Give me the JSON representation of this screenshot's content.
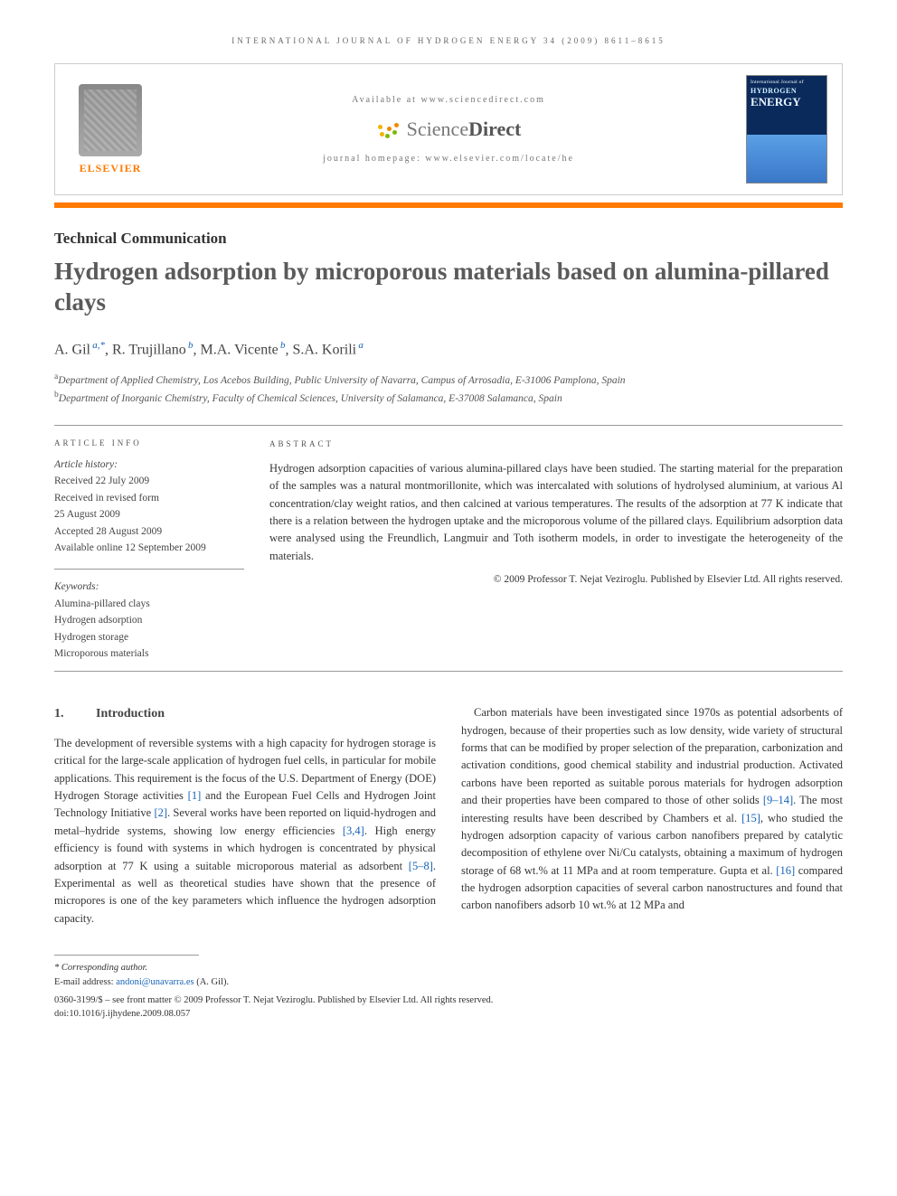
{
  "running_header": "INTERNATIONAL JOURNAL OF HYDROGEN ENERGY 34 (2009) 8611–8615",
  "banner": {
    "available_at": "Available at www.sciencedirect.com",
    "sd_brand_light": "Science",
    "sd_brand_bold": "Direct",
    "homepage_label": "journal homepage: www.elsevier.com/locate/he",
    "elsevier_label": "ELSEVIER",
    "cover": {
      "line1": "International Journal of",
      "line2": "HYDROGEN",
      "line3": "ENERGY"
    }
  },
  "colors": {
    "accent_orange": "#ff7a00",
    "link_blue": "#1763b8",
    "cover_dark": "#0a2a5c",
    "cover_light": "#5aa0e6",
    "sd_dot1": "#f5b100",
    "sd_dot2": "#f08a00",
    "sd_dot3": "#7fb800"
  },
  "article_type": "Technical Communication",
  "title": "Hydrogen adsorption by microporous materials based on alumina-pillared clays",
  "authors_html": "A. Gil",
  "authors": [
    {
      "name": "A. Gil",
      "marks": "a,*"
    },
    {
      "name": "R. Trujillano",
      "marks": "b"
    },
    {
      "name": "M.A. Vicente",
      "marks": "b"
    },
    {
      "name": "S.A. Korili",
      "marks": "a"
    }
  ],
  "affiliations": [
    {
      "mark": "a",
      "text": "Department of Applied Chemistry, Los Acebos Building, Public University of Navarra, Campus of Arrosadia, E-31006 Pamplona, Spain"
    },
    {
      "mark": "b",
      "text": "Department of Inorganic Chemistry, Faculty of Chemical Sciences, University of Salamanca, E-37008 Salamanca, Spain"
    }
  ],
  "info": {
    "label": "ARTICLE INFO",
    "history_lead": "Article history:",
    "history": [
      "Received 22 July 2009",
      "Received in revised form",
      "25 August 2009",
      "Accepted 28 August 2009",
      "Available online 12 September 2009"
    ],
    "keywords_lead": "Keywords:",
    "keywords": [
      "Alumina-pillared clays",
      "Hydrogen adsorption",
      "Hydrogen storage",
      "Microporous materials"
    ]
  },
  "abstract": {
    "label": "ABSTRACT",
    "text": "Hydrogen adsorption capacities of various alumina-pillared clays have been studied. The starting material for the preparation of the samples was a natural montmorillonite, which was intercalated with solutions of hydrolysed aluminium, at various Al concentration/clay weight ratios, and then calcined at various temperatures. The results of the adsorption at 77 K indicate that there is a relation between the hydrogen uptake and the microporous volume of the pillared clays. Equilibrium adsorption data were analysed using the Freundlich, Langmuir and Toth isotherm models, in order to investigate the heterogeneity of the materials.",
    "copyright": "© 2009 Professor T. Nejat Veziroglu. Published by Elsevier Ltd. All rights reserved."
  },
  "section1": {
    "number": "1.",
    "title": "Introduction",
    "p1": "The development of reversible systems with a high capacity for hydrogen storage is critical for the large-scale application of hydrogen fuel cells, in particular for mobile applications. This requirement is the focus of the U.S. Department of Energy (DOE) Hydrogen Storage activities [1] and the European Fuel Cells and Hydrogen Joint Technology Initiative [2]. Several works have been reported on liquid-hydrogen and metal–hydride systems, showing low energy efficiencies [3,4]. High energy efficiency is found with systems in which hydrogen is concentrated by physical adsorption at 77 K using a suitable microporous material as adsorbent [5–8]. Experimental as well as theoretical studies have shown that the presence of micropores is one of the key parameters which influence the hydrogen adsorption capacity.",
    "p2": "Carbon materials have been investigated since 1970s as potential adsorbents of hydrogen, because of their properties such as low density, wide variety of structural forms that can be modified by proper selection of the preparation, carbonization and activation conditions, good chemical stability and industrial production. Activated carbons have been reported as suitable porous materials for hydrogen adsorption and their properties have been compared to those of other solids [9–14]. The most interesting results have been described by Chambers et al. [15], who studied the hydrogen adsorption capacity of various carbon nanofibers prepared by catalytic decomposition of ethylene over Ni/Cu catalysts, obtaining a maximum of hydrogen storage of 68 wt.% at 11 MPa and at room temperature. Gupta et al. [16] compared the hydrogen adsorption capacities of several carbon nanostructures and found that carbon nanofibers adsorb 10 wt.% at 12 MPa and"
  },
  "footnote": {
    "corr": "* Corresponding author.",
    "email_label": "E-mail address: ",
    "email": "andoni@unavarra.es",
    "email_tail": " (A. Gil)."
  },
  "footer": {
    "line1": "0360-3199/$ – see front matter © 2009 Professor T. Nejat Veziroglu. Published by Elsevier Ltd. All rights reserved.",
    "line2": "doi:10.1016/j.ijhydene.2009.08.057"
  }
}
